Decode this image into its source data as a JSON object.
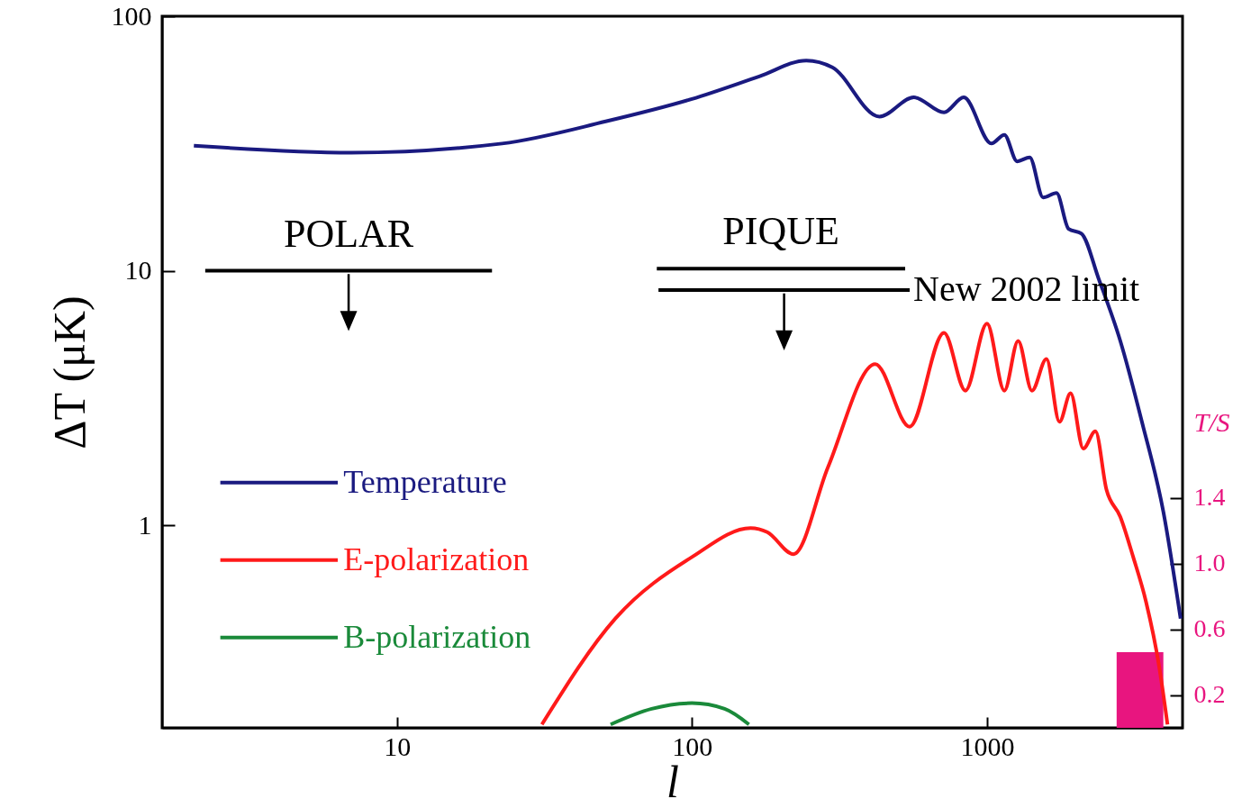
{
  "chart_data": {
    "type": "line",
    "xlabel": "l",
    "ylabel": "ΔT (μK)",
    "y2label": "T/S",
    "log": "xy",
    "xlim": [
      1.6,
      4600
    ],
    "xticks": [
      10,
      100,
      1000
    ],
    "ylim": [
      0.16,
      100
    ],
    "yticks": [
      1,
      10,
      100
    ],
    "y2lim": [
      0,
      4.33
    ],
    "y2ticks": [
      0.2,
      0.6,
      {
        "value": 1,
        "label": "1.0"
      },
      1.4
    ],
    "grid": false,
    "legend": "left",
    "line_style": "solid",
    "marker": "none",
    "series": [
      {
        "name": "Temperature",
        "color": "#1a1a80",
        "x": [
          2.05,
          7,
          22.7,
          51,
          100,
          169,
          244,
          299,
          432,
          565,
          715,
          834,
          1035,
          1145,
          1265,
          1395,
          1550,
          1720,
          1890,
          2090,
          2390,
          2830,
          3350,
          3960,
          4530
        ],
        "values": [
          31,
          29.1,
          31.6,
          38.6,
          47.3,
          58,
          67,
          63,
          40.3,
          48,
          41.9,
          48,
          31.6,
          34.2,
          26.9,
          27.9,
          19.4,
          20.2,
          14.6,
          14,
          9.3,
          5.3,
          2.55,
          1.13,
          0.43
        ]
      },
      {
        "name": "E-polarization",
        "color": "#ff1a1a",
        "x": [
          31,
          55,
          100,
          158,
          180,
          221,
          289,
          418,
          547,
          715,
          845,
          1000,
          1145,
          1275,
          1420,
          1590,
          1760,
          1920,
          2120,
          2330,
          2540,
          2830,
          3130,
          3460,
          3830,
          4090
        ],
        "values": [
          0.165,
          0.43,
          0.75,
          0.975,
          0.94,
          0.77,
          1.69,
          4.3,
          2.44,
          5.7,
          3.38,
          6.2,
          3.38,
          5.3,
          3.38,
          4.5,
          2.55,
          3.3,
          2.0,
          2.34,
          1.38,
          1.08,
          0.75,
          0.5,
          0.28,
          0.165
        ]
      },
      {
        "name": "B-polarization",
        "color": "#1a8a3a",
        "x": [
          53,
          73,
          100,
          129,
          156
        ],
        "values": [
          0.165,
          0.19,
          0.2,
          0.19,
          0.165
        ]
      },
      {
        "name": "POLAR",
        "color": "#000000",
        "x": [
          2.24,
          21
        ],
        "values": [
          10,
          10
        ]
      },
      {
        "name": "PIQUE",
        "color": "#000000",
        "x": [
          76,
          528
        ],
        "values": [
          10.2,
          10.2
        ]
      },
      {
        "name": "New 2002 limit",
        "color": "#000000",
        "x": [
          77,
          547
        ],
        "values": [
          8.4,
          8.4
        ]
      },
      {
        "type": "bar",
        "axis": "y2",
        "color": "#e8157f",
        "x": [
          3300
        ],
        "values": [
          0.46
        ]
      }
    ]
  }
}
